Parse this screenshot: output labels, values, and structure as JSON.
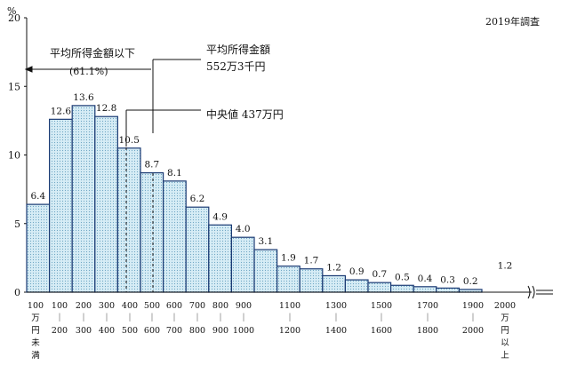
{
  "chart_data": {
    "type": "bar",
    "survey_note": "2019年調査",
    "y_unit": "%",
    "ylim": [
      0,
      20
    ],
    "y_ticks": [
      "0",
      "5",
      "10",
      "15",
      "20"
    ],
    "bins": [
      {
        "value": 6.4,
        "label": "6.4"
      },
      {
        "value": 12.6,
        "label": "12.6"
      },
      {
        "value": 13.6,
        "label": "13.6"
      },
      {
        "value": 12.8,
        "label": "12.8"
      },
      {
        "value": 10.5,
        "label": "10.5"
      },
      {
        "value": 8.7,
        "label": "8.7"
      },
      {
        "value": 8.1,
        "label": "8.1"
      },
      {
        "value": 6.2,
        "label": "6.2"
      },
      {
        "value": 4.9,
        "label": "4.9"
      },
      {
        "value": 4.0,
        "label": "4.0"
      },
      {
        "value": 3.1,
        "label": "3.1"
      },
      {
        "value": 1.9,
        "label": "1.9"
      },
      {
        "value": 1.7,
        "label": "1.7"
      },
      {
        "value": 1.2,
        "label": "1.2"
      },
      {
        "value": 0.9,
        "label": "0.9"
      },
      {
        "value": 0.7,
        "label": "0.7"
      },
      {
        "value": 0.5,
        "label": "0.5"
      },
      {
        "value": 0.4,
        "label": "0.4"
      },
      {
        "value": 0.3,
        "label": "0.3"
      },
      {
        "value": 0.2,
        "label": "0.2"
      },
      {
        "value": 1.2,
        "label": "1.2"
      }
    ],
    "x_labels": [
      [
        "100",
        "万",
        "円",
        "未",
        "満"
      ],
      [
        "100",
        "｜",
        "200"
      ],
      [
        "200",
        "｜",
        "300"
      ],
      [
        "300",
        "｜",
        "400"
      ],
      [
        "400",
        "｜",
        "500"
      ],
      [
        "500",
        "｜",
        "600"
      ],
      [
        "600",
        "｜",
        "700"
      ],
      [
        "700",
        "｜",
        "800"
      ],
      [
        "800",
        "｜",
        "900"
      ],
      [
        "900",
        "｜",
        "1000"
      ],
      [
        "1100",
        "｜",
        "1200"
      ],
      [
        "1300",
        "｜",
        "1400"
      ],
      [
        "1500",
        "｜",
        "1600"
      ],
      [
        "1700",
        "｜",
        "1800"
      ],
      [
        "1900",
        "｜",
        "2000"
      ],
      [
        "2000",
        "万",
        "円",
        "以",
        "上"
      ]
    ],
    "annotations": {
      "below_average_line1": "平均所得金額以下",
      "below_average_line2": "(61.1%)",
      "mean_line1": "平均所得金額",
      "mean_line2": "552万3千円",
      "median": "中央値 437万円"
    },
    "fill_color": "#cfe8f3",
    "stroke_color": "#1a3a73"
  }
}
